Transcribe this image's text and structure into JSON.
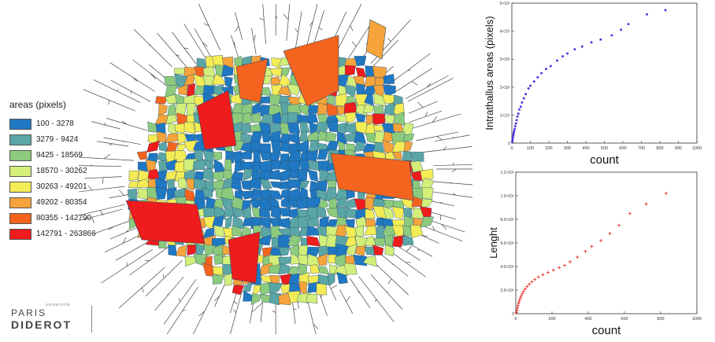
{
  "legend": {
    "title": "areas (pixels)",
    "items": [
      {
        "label": "100 - 3278",
        "color": "#1f78c1"
      },
      {
        "label": "3279 - 9424",
        "color": "#5aa6a6"
      },
      {
        "label": "9425 - 18569",
        "color": "#8ccb7d"
      },
      {
        "label": "18570 - 30262",
        "color": "#d3ef7a"
      },
      {
        "label": "30263 - 49201",
        "color": "#f4ec55"
      },
      {
        "label": "49202 - 80354",
        "color": "#f5a33a"
      },
      {
        "label": "80355 - 142790",
        "color": "#f4641f"
      },
      {
        "label": "142791 - 263866",
        "color": "#ee1c1c"
      }
    ]
  },
  "logo": {
    "small": "université",
    "line1": "PARIS",
    "line2": "DIDEROT"
  },
  "chart_data": [
    {
      "type": "scatter",
      "xlabel": "count",
      "ylabel": "Intrathallus areas (pixels)",
      "xlim": [
        0,
        1000
      ],
      "ylim": [
        0,
        5
      ],
      "xticks": [
        0,
        100,
        200,
        300,
        400,
        500,
        600,
        700,
        800,
        900,
        1000
      ],
      "yticks": [
        0,
        1,
        2,
        3,
        4,
        5
      ],
      "ytick_labels": [
        "0",
        "1×10⁵",
        "2×10⁵",
        "3×10⁵",
        "4×10⁵",
        "5×10⁵"
      ],
      "color": "#4a2bdc",
      "marker": "dot",
      "points": [
        [
          2,
          0.05
        ],
        [
          4,
          0.12
        ],
        [
          6,
          0.2
        ],
        [
          8,
          0.28
        ],
        [
          10,
          0.35
        ],
        [
          12,
          0.42
        ],
        [
          15,
          0.5
        ],
        [
          18,
          0.6
        ],
        [
          22,
          0.7
        ],
        [
          26,
          0.82
        ],
        [
          30,
          0.95
        ],
        [
          35,
          1.05
        ],
        [
          40,
          1.2
        ],
        [
          48,
          1.3
        ],
        [
          55,
          1.45
        ],
        [
          65,
          1.6
        ],
        [
          75,
          1.75
        ],
        [
          90,
          1.95
        ],
        [
          100,
          2.05
        ],
        [
          120,
          2.2
        ],
        [
          140,
          2.35
        ],
        [
          160,
          2.5
        ],
        [
          185,
          2.65
        ],
        [
          210,
          2.75
        ],
        [
          245,
          2.95
        ],
        [
          275,
          3.1
        ],
        [
          300,
          3.2
        ],
        [
          340,
          3.35
        ],
        [
          380,
          3.45
        ],
        [
          430,
          3.6
        ],
        [
          480,
          3.7
        ],
        [
          540,
          3.85
        ],
        [
          590,
          4.05
        ],
        [
          630,
          4.25
        ],
        [
          730,
          4.6
        ],
        [
          830,
          4.75
        ]
      ]
    },
    {
      "type": "scatter",
      "xlabel": "count",
      "ylabel": "Lenght",
      "xlim": [
        0,
        1000
      ],
      "ylim": [
        0,
        1.2
      ],
      "xticks": [
        0,
        200,
        400,
        600,
        800,
        1000
      ],
      "yticks": [
        0,
        0.2,
        0.4,
        0.6,
        0.8,
        1.0,
        1.2
      ],
      "ytick_labels": [
        "0",
        "2.0×10⁵",
        "4.0×10⁵",
        "6.0×10⁵",
        "8.0×10⁵",
        "1.0×10⁶",
        "1.2×10⁶"
      ],
      "color": "#e41a1c",
      "marker": "plus",
      "points": [
        [
          3,
          0.01
        ],
        [
          6,
          0.03
        ],
        [
          9,
          0.05
        ],
        [
          12,
          0.07
        ],
        [
          16,
          0.09
        ],
        [
          20,
          0.11
        ],
        [
          25,
          0.13
        ],
        [
          30,
          0.15
        ],
        [
          36,
          0.17
        ],
        [
          43,
          0.19
        ],
        [
          52,
          0.21
        ],
        [
          62,
          0.23
        ],
        [
          74,
          0.25
        ],
        [
          88,
          0.27
        ],
        [
          105,
          0.29
        ],
        [
          125,
          0.31
        ],
        [
          150,
          0.33
        ],
        [
          178,
          0.35
        ],
        [
          208,
          0.37
        ],
        [
          240,
          0.39
        ],
        [
          270,
          0.41
        ],
        [
          300,
          0.44
        ],
        [
          340,
          0.48
        ],
        [
          385,
          0.53
        ],
        [
          420,
          0.57
        ],
        [
          470,
          0.62
        ],
        [
          520,
          0.68
        ],
        [
          570,
          0.75
        ],
        [
          630,
          0.85
        ],
        [
          720,
          0.93
        ],
        [
          830,
          1.02
        ]
      ]
    }
  ]
}
